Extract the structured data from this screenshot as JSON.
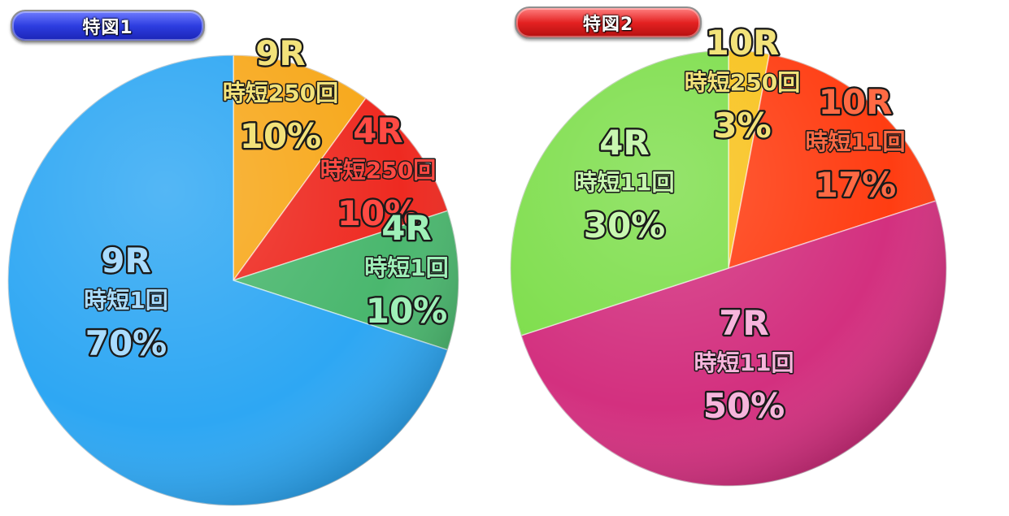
{
  "chart_data": [
    {
      "type": "pie",
      "title": "特図1",
      "slices": [
        {
          "round": "9R",
          "jitan": "時短250回",
          "percent": 10,
          "label": "10%",
          "color": "#f7a81b",
          "text_color": "#f2e27a"
        },
        {
          "round": "4R",
          "jitan": "時短250回",
          "percent": 10,
          "label": "10%",
          "color": "#ee2a21",
          "text_color": "#ff4a43"
        },
        {
          "round": "4R",
          "jitan": "時短1回",
          "percent": 10,
          "label": "10%",
          "color": "#4ab76e",
          "text_color": "#9ff0b8"
        },
        {
          "round": "9R",
          "jitan": "時短1回",
          "percent": 70,
          "label": "70%",
          "color": "#2ea7f3",
          "text_color": "#a9dcff"
        }
      ]
    },
    {
      "type": "pie",
      "title": "特図2",
      "slices": [
        {
          "round": "10R",
          "jitan": "時短250回",
          "percent": 3,
          "label": "3%",
          "color": "#f8c21c",
          "text_color": "#f2e27a"
        },
        {
          "round": "10R",
          "jitan": "時短11回",
          "percent": 17,
          "label": "17%",
          "color": "#ff3d12",
          "text_color": "#ff6a44"
        },
        {
          "round": "7R",
          "jitan": "時短11回",
          "percent": 50,
          "label": "50%",
          "color": "#d3307f",
          "text_color": "#f7b5dc"
        },
        {
          "round": "4R",
          "jitan": "時短11回",
          "percent": 30,
          "label": "30%",
          "color": "#7ede4c",
          "text_color": "#c8f7b0"
        }
      ]
    }
  ]
}
